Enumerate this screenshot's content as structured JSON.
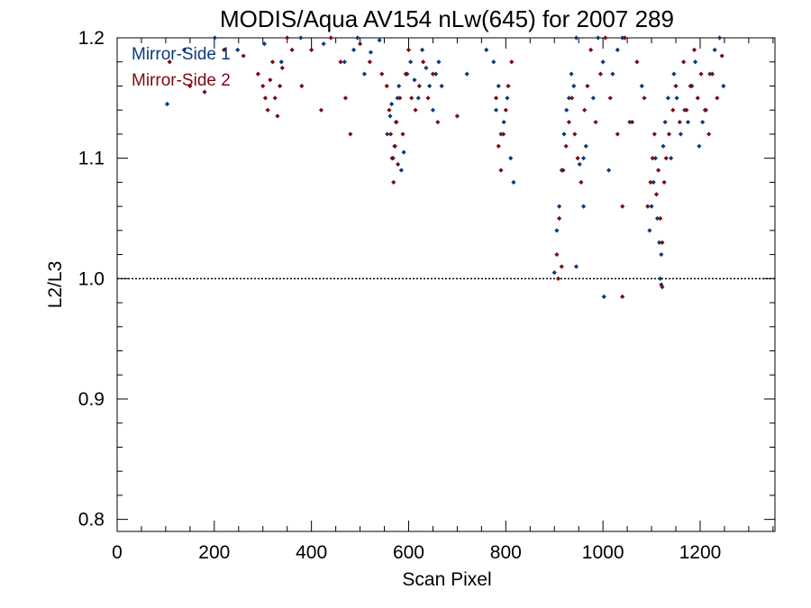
{
  "chart_data": {
    "type": "scatter",
    "title": "MODIS/Aqua AV154 nLw(645) for 2007 289",
    "xlabel": "Scan Pixel",
    "ylabel": "L2/L3",
    "xlim": [
      0,
      1354
    ],
    "ylim": [
      0.79,
      1.2
    ],
    "x_ticks": [
      0,
      200,
      400,
      600,
      800,
      1000,
      1200
    ],
    "x_tick_labels": [
      "0",
      "200",
      "400",
      "600",
      "800",
      "1000",
      "1200"
    ],
    "x_minor_step": 50,
    "y_ticks": [
      0.8,
      0.9,
      1.0,
      1.1,
      1.2
    ],
    "y_tick_labels": [
      "0.8",
      "0.9",
      "1.0",
      "1.1",
      "1.2"
    ],
    "y_minor_step": 0.02,
    "reference_line": {
      "y": 1.0,
      "style": "dotted",
      "color": "#000000"
    },
    "grid": false,
    "legend_position": "top-left",
    "series": [
      {
        "name": "Mirror-Side 1",
        "color": "#0a3a7a",
        "x": [
          103,
          138,
          201,
          248,
          303,
          338,
          378,
          425,
          468,
          487,
          495,
          509,
          522,
          540,
          556,
          562,
          565,
          568,
          571,
          574,
          577,
          580,
          585,
          590,
          597,
          604,
          612,
          620,
          628,
          636,
          643,
          650,
          656,
          662,
          668,
          720,
          760,
          775,
          780,
          785,
          790,
          796,
          803,
          810,
          816,
          900,
          905,
          910,
          915,
          920,
          925,
          930,
          935,
          940,
          945,
          952,
          960,
          965,
          980,
          990,
          1000,
          1012,
          1020,
          1030,
          1040,
          1055,
          1080,
          1096,
          1100,
          1104,
          1108,
          1112,
          1116,
          1120,
          1124,
          1128,
          1134,
          1140,
          1146,
          1152,
          1160,
          1168,
          1175,
          1183,
          1190,
          1198,
          1205,
          1212,
          1220,
          1230,
          1240,
          1248,
          1002,
          945,
          960,
          1118,
          1122
        ],
        "y": [
          1.145,
          1.19,
          1.2,
          1.19,
          1.195,
          1.18,
          1.2,
          1.195,
          1.18,
          1.19,
          1.2,
          1.17,
          1.188,
          1.198,
          1.12,
          1.135,
          1.145,
          1.1,
          1.11,
          1.13,
          1.15,
          1.16,
          1.09,
          1.105,
          1.17,
          1.18,
          1.165,
          1.15,
          1.19,
          1.175,
          1.16,
          1.14,
          1.17,
          1.18,
          1.16,
          1.17,
          1.19,
          1.18,
          1.14,
          1.16,
          1.12,
          1.13,
          1.15,
          1.1,
          1.08,
          1.005,
          1.04,
          1.06,
          1.09,
          1.12,
          1.14,
          1.15,
          1.17,
          1.16,
          1.2,
          1.095,
          1.1,
          1.11,
          1.15,
          1.2,
          1.18,
          1.09,
          1.17,
          1.19,
          1.2,
          1.13,
          1.16,
          1.04,
          1.06,
          1.08,
          1.1,
          1.05,
          1.03,
          1.02,
          1.11,
          1.13,
          1.15,
          1.1,
          1.17,
          1.15,
          1.12,
          1.14,
          1.13,
          1.16,
          1.18,
          1.11,
          1.13,
          1.14,
          1.17,
          1.19,
          1.2,
          1.16,
          0.985,
          1.01,
          1.06,
          1.0,
          0.993
        ]
      },
      {
        "name": "Mirror-Side 2",
        "color": "#7a0a14",
        "x": [
          108,
          150,
          180,
          220,
          260,
          290,
          300,
          305,
          310,
          315,
          320,
          325,
          330,
          335,
          340,
          350,
          360,
          380,
          400,
          420,
          440,
          460,
          470,
          480,
          500,
          520,
          545,
          555,
          560,
          563,
          566,
          569,
          572,
          575,
          578,
          582,
          588,
          594,
          600,
          606,
          614,
          622,
          630,
          640,
          650,
          660,
          700,
          780,
          785,
          790,
          795,
          800,
          805,
          812,
          905,
          910,
          918,
          924,
          930,
          936,
          942,
          948,
          955,
          962,
          968,
          975,
          985,
          995,
          1005,
          1015,
          1030,
          1040,
          1045,
          1060,
          1070,
          1085,
          1092,
          1098,
          1102,
          1106,
          1110,
          1114,
          1118,
          1122,
          1126,
          1130,
          1136,
          1144,
          1150,
          1158,
          1166,
          1172,
          1180,
          1188,
          1195,
          1202,
          1210,
          1218,
          1225,
          1235,
          1245,
          908,
          915,
          1040,
          1120
        ],
        "y": [
          1.18,
          1.16,
          1.155,
          1.19,
          1.185,
          1.17,
          1.16,
          1.15,
          1.14,
          1.165,
          1.18,
          1.15,
          1.135,
          1.16,
          1.175,
          1.2,
          1.19,
          1.16,
          1.19,
          1.14,
          1.2,
          1.18,
          1.15,
          1.12,
          1.195,
          1.18,
          1.17,
          1.16,
          1.14,
          1.12,
          1.1,
          1.08,
          1.11,
          1.13,
          1.095,
          1.15,
          1.12,
          1.17,
          1.19,
          1.15,
          1.14,
          1.16,
          1.18,
          1.15,
          1.17,
          1.13,
          1.135,
          1.15,
          1.11,
          1.09,
          1.12,
          1.14,
          1.16,
          1.18,
          1.02,
          1.05,
          1.09,
          1.11,
          1.13,
          1.15,
          1.12,
          1.1,
          1.08,
          1.14,
          1.16,
          1.19,
          1.13,
          1.17,
          1.2,
          1.15,
          1.12,
          1.06,
          1.2,
          1.13,
          1.18,
          1.15,
          1.06,
          1.08,
          1.1,
          1.12,
          1.07,
          1.09,
          1.05,
          1.03,
          1.08,
          1.1,
          1.12,
          1.14,
          1.16,
          1.13,
          1.18,
          1.14,
          1.16,
          1.19,
          1.15,
          1.17,
          1.14,
          1.12,
          1.17,
          1.15,
          1.185,
          1.0,
          1.01,
          0.985,
          0.995
        ]
      }
    ]
  }
}
